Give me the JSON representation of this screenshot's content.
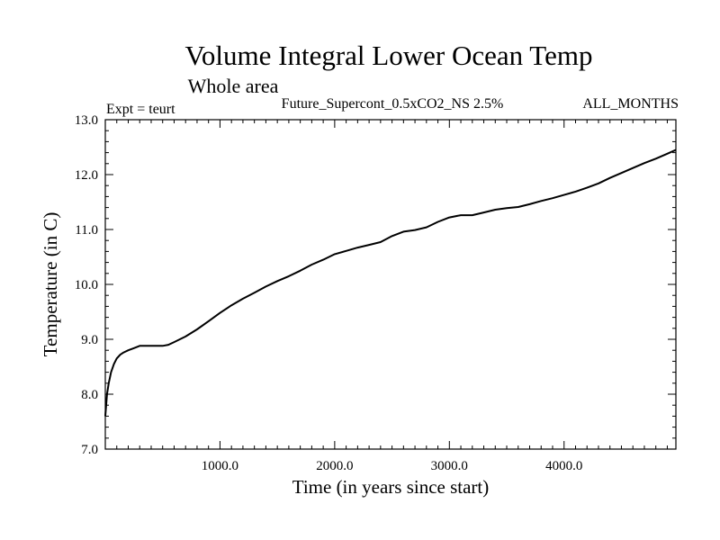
{
  "chart_data": {
    "type": "line",
    "title": "Volume Integral Lower Ocean Temp",
    "subtitle": "Whole area",
    "experiment_label": "Expt = teurt",
    "run_label": "Future_Supercont_0.5xCO2_NS 2.5%",
    "months_label": "ALL_MONTHS",
    "xlabel": "Time (in years since start)",
    "ylabel": "Temperature (in C)",
    "xlim": [
      0,
      4975
    ],
    "ylim": [
      7.0,
      13.0
    ],
    "xticks": [
      1000,
      2000,
      3000,
      4000
    ],
    "xtick_labels": [
      "1000.0",
      "2000.0",
      "3000.0",
      "4000.0"
    ],
    "yticks": [
      7.0,
      8.0,
      9.0,
      10.0,
      11.0,
      12.0,
      13.0
    ],
    "ytick_labels": [
      "7.0",
      "8.0",
      "9.0",
      "10.0",
      "11.0",
      "12.0",
      "13.0"
    ],
    "grid": false,
    "line_color": "#000000",
    "series": [
      {
        "x": [
          0,
          15,
          30,
          50,
          75,
          100,
          130,
          160,
          200,
          250,
          300,
          350,
          400,
          450,
          500,
          550,
          600,
          700,
          800,
          900,
          1000,
          1100,
          1200,
          1300,
          1400,
          1500,
          1600,
          1700,
          1800,
          1900,
          2000,
          2100,
          2200,
          2300,
          2400,
          2500,
          2600,
          2700,
          2800,
          2900,
          3000,
          3100,
          3200,
          3300,
          3400,
          3500,
          3600,
          3700,
          3800,
          3900,
          4000,
          4100,
          4200,
          4300,
          4400,
          4500,
          4600,
          4700,
          4800,
          4900,
          4975
        ],
        "y": [
          7.6,
          8.0,
          8.2,
          8.4,
          8.55,
          8.65,
          8.72,
          8.76,
          8.8,
          8.84,
          8.88,
          8.88,
          8.88,
          8.88,
          8.88,
          8.9,
          8.95,
          9.05,
          9.18,
          9.33,
          9.48,
          9.62,
          9.74,
          9.85,
          9.96,
          10.06,
          10.15,
          10.25,
          10.36,
          10.45,
          10.55,
          10.61,
          10.67,
          10.72,
          10.77,
          10.88,
          10.96,
          10.99,
          11.04,
          11.14,
          11.22,
          11.26,
          11.26,
          11.31,
          11.36,
          11.39,
          11.41,
          11.46,
          11.52,
          11.57,
          11.63,
          11.69,
          11.76,
          11.84,
          11.94,
          12.03,
          12.12,
          12.21,
          12.29,
          12.38,
          12.45
        ]
      }
    ]
  }
}
